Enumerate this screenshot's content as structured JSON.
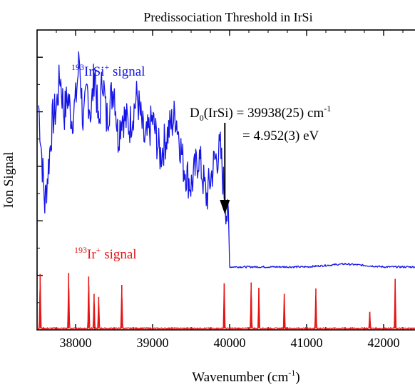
{
  "chart_data": {
    "type": "line",
    "title": "Predissociation Threshold in IrSi",
    "xlabel": "Wavenumber (cm-1)",
    "ylabel": "Ion Signal",
    "xlim": [
      37500,
      42500
    ],
    "x_ticks": [
      38000,
      39000,
      40000,
      41000,
      42000
    ],
    "x_tick_labels": [
      "38000",
      "39000",
      "40000",
      "41000",
      "42000"
    ],
    "y_axis_tick_labels_shown": false,
    "grid": false,
    "series": [
      {
        "name": "193IrSi+ signal",
        "color": "#1414e6",
        "description_points": [
          [
            37520,
            0.75
          ],
          [
            37600,
            0.42
          ],
          [
            37650,
            0.55
          ],
          [
            37700,
            0.7
          ],
          [
            37750,
            0.74
          ],
          [
            37800,
            0.85
          ],
          [
            37850,
            0.72
          ],
          [
            37900,
            0.78
          ],
          [
            37950,
            0.7
          ],
          [
            38000,
            0.76
          ],
          [
            38050,
            0.91
          ],
          [
            38100,
            0.68
          ],
          [
            38150,
            0.8
          ],
          [
            38200,
            0.72
          ],
          [
            38250,
            0.88
          ],
          [
            38300,
            0.66
          ],
          [
            38350,
            0.86
          ],
          [
            38400,
            0.7
          ],
          [
            38450,
            0.76
          ],
          [
            38500,
            0.82
          ],
          [
            38550,
            0.64
          ],
          [
            38600,
            0.72
          ],
          [
            38700,
            0.68
          ],
          [
            38800,
            0.78
          ],
          [
            38900,
            0.62
          ],
          [
            39000,
            0.7
          ],
          [
            39100,
            0.58
          ],
          [
            39200,
            0.66
          ],
          [
            39300,
            0.72
          ],
          [
            39400,
            0.55
          ],
          [
            39500,
            0.48
          ],
          [
            39600,
            0.58
          ],
          [
            39700,
            0.44
          ],
          [
            39800,
            0.56
          ],
          [
            39880,
            0.6
          ],
          [
            39930,
            0.46
          ],
          [
            39990,
            0.34
          ],
          [
            40000,
            0.21
          ],
          [
            40500,
            0.21
          ],
          [
            41000,
            0.21
          ],
          [
            41500,
            0.22
          ],
          [
            42000,
            0.21
          ],
          [
            42500,
            0.21
          ]
        ]
      },
      {
        "name": "193Ir+ signal",
        "color": "#e61414",
        "type": "stick",
        "peaks": [
          {
            "x": 37540,
            "y": 0.186
          },
          {
            "x": 37910,
            "y": 0.19
          },
          {
            "x": 38170,
            "y": 0.178
          },
          {
            "x": 38240,
            "y": 0.12
          },
          {
            "x": 38300,
            "y": 0.11
          },
          {
            "x": 38600,
            "y": 0.15
          },
          {
            "x": 39930,
            "y": 0.155
          },
          {
            "x": 40280,
            "y": 0.158
          },
          {
            "x": 40380,
            "y": 0.14
          },
          {
            "x": 40710,
            "y": 0.12
          },
          {
            "x": 41120,
            "y": 0.138
          },
          {
            "x": 41820,
            "y": 0.06
          },
          {
            "x": 42150,
            "y": 0.17
          }
        ]
      }
    ],
    "annotations": {
      "irsi_label_sup": "193",
      "irsi_label_main": "IrSi",
      "irsi_label_charge": "+",
      "irsi_label_tail": " signal",
      "ir_label_sup": "193",
      "ir_label_main": "Ir",
      "ir_label_charge": "+",
      "ir_label_tail": " signal",
      "d0_prefix": "D",
      "d0_sub": "0",
      "d0_rest": "(IrSi) = 39938(25) cm",
      "d0_sup": "-1",
      "ev_text": "=  4.952(3) eV",
      "arrow_x": 39938
    }
  }
}
